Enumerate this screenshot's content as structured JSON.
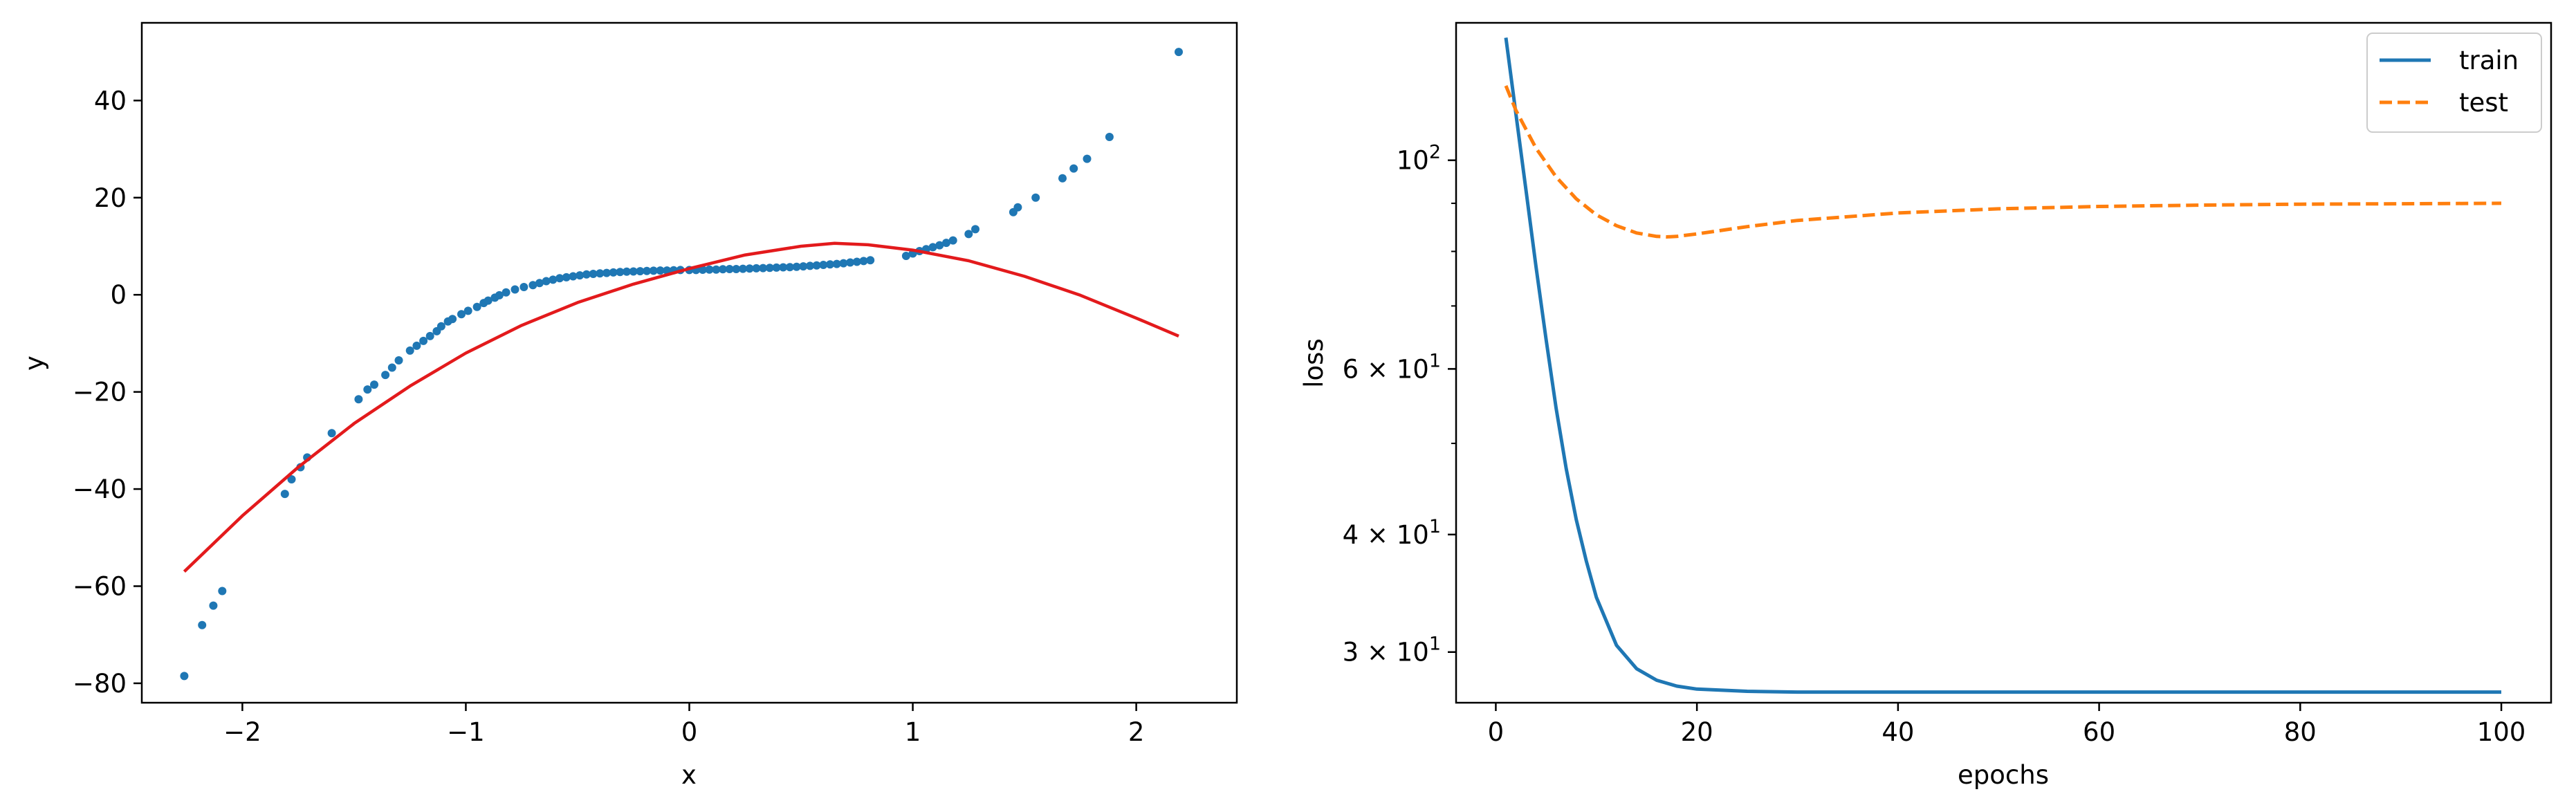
{
  "chart_data": [
    {
      "type": "scatter",
      "title": "",
      "xlabel": "x",
      "ylabel": "y",
      "xlim": [
        -2.45,
        2.45
      ],
      "ylim": [
        -84,
        56
      ],
      "xticks": [
        -2,
        -1,
        0,
        1,
        2
      ],
      "xtick_labels": [
        "−2",
        "−1",
        "0",
        "1",
        "2"
      ],
      "yticks": [
        -80,
        -60,
        -40,
        -20,
        0,
        20,
        40
      ],
      "ytick_labels": [
        "−80",
        "−60",
        "−40",
        "−20",
        "0",
        "20",
        "40"
      ],
      "grid": false,
      "colors": {
        "points": "#1f77b4",
        "fit": "#e31a1c"
      },
      "series": [
        {
          "kind": "points",
          "x": [
            -2.26,
            -2.18,
            -2.13,
            -2.09,
            -1.81,
            -1.78,
            -1.74,
            -1.71,
            -1.6,
            -1.48,
            -1.44,
            -1.41,
            -1.36,
            -1.33,
            -1.3,
            -1.25,
            -1.22,
            -1.19,
            -1.16,
            -1.13,
            -1.11,
            -1.08,
            -1.06,
            -1.02,
            -0.99,
            -0.95,
            -0.92,
            -0.9,
            -0.87,
            -0.85,
            -0.82,
            -0.78,
            -0.74,
            -0.7,
            -0.67,
            -0.64,
            -0.61,
            -0.58,
            -0.55,
            -0.52,
            -0.49,
            -0.46,
            -0.43,
            -0.4,
            -0.37,
            -0.34,
            -0.31,
            -0.28,
            -0.25,
            -0.22,
            -0.19,
            -0.16,
            -0.13,
            -0.1,
            -0.07,
            -0.04,
            0.0,
            0.03,
            0.06,
            0.09,
            0.12,
            0.15,
            0.18,
            0.21,
            0.24,
            0.27,
            0.3,
            0.33,
            0.36,
            0.39,
            0.42,
            0.45,
            0.48,
            0.51,
            0.54,
            0.57,
            0.6,
            0.63,
            0.66,
            0.69,
            0.72,
            0.75,
            0.78,
            0.81,
            0.97,
            1.0,
            1.03,
            1.06,
            1.09,
            1.12,
            1.15,
            1.18,
            1.25,
            1.28,
            1.45,
            1.47,
            1.55,
            1.67,
            1.72,
            1.78,
            1.88,
            2.19
          ],
          "y": [
            -78.5,
            -68,
            -64,
            -61,
            -41,
            -38,
            -35.5,
            -33.5,
            -28.5,
            -21.5,
            -19.5,
            -18.5,
            -16.5,
            -15,
            -13.5,
            -11.5,
            -10.5,
            -9.5,
            -8.5,
            -7.5,
            -6.5,
            -5.5,
            -5,
            -4,
            -3.3,
            -2.5,
            -1.7,
            -1.2,
            -0.6,
            -0.1,
            0.5,
            1.1,
            1.6,
            2.0,
            2.4,
            2.8,
            3.1,
            3.4,
            3.6,
            3.8,
            4.0,
            4.2,
            4.3,
            4.4,
            4.5,
            4.6,
            4.7,
            4.75,
            4.8,
            4.85,
            4.9,
            4.95,
            5.0,
            5.0,
            5.05,
            5.1,
            5.1,
            5.1,
            5.15,
            5.2,
            5.2,
            5.25,
            5.3,
            5.3,
            5.35,
            5.4,
            5.45,
            5.5,
            5.55,
            5.6,
            5.65,
            5.7,
            5.75,
            5.85,
            5.95,
            6.05,
            6.15,
            6.25,
            6.35,
            6.5,
            6.65,
            6.8,
            6.95,
            7.1,
            8.0,
            8.5,
            9.0,
            9.4,
            9.8,
            10.2,
            10.7,
            11.2,
            12.5,
            13.5,
            17,
            18,
            20,
            24,
            26,
            28,
            32.5,
            50
          ]
        },
        {
          "kind": "line",
          "x": [
            -2.26,
            -2.0,
            -1.75,
            -1.5,
            -1.25,
            -1.0,
            -0.75,
            -0.5,
            -0.25,
            0.0,
            0.25,
            0.5,
            0.65,
            0.8,
            1.0,
            1.25,
            1.5,
            1.75,
            2.0,
            2.19
          ],
          "y": [
            -57,
            -45.5,
            -35.5,
            -26.5,
            -18.8,
            -12,
            -6.3,
            -1.6,
            2.2,
            5.4,
            8.2,
            10,
            10.6,
            10.3,
            9.2,
            7,
            3.8,
            -0.1,
            -4.8,
            -8.5
          ]
        }
      ]
    },
    {
      "type": "line",
      "title": "",
      "xlabel": "epochs",
      "ylabel": "loss",
      "yscale": "log",
      "xlim": [
        -3.95,
        104.95
      ],
      "ylim": [
        26.5,
        140
      ],
      "xticks": [
        0,
        20,
        40,
        60,
        80,
        100
      ],
      "xtick_labels": [
        "0",
        "20",
        "40",
        "60",
        "80",
        "100"
      ],
      "yticks_major": [
        30,
        40,
        60,
        100
      ],
      "ytick_labels": [
        {
          "base": "3 × 10",
          "exp": "1"
        },
        {
          "base": "4 × 10",
          "exp": "1"
        },
        {
          "base": "6 × 10",
          "exp": "1"
        },
        {
          "base": "10",
          "exp": "2"
        }
      ],
      "yticks_minor": [
        50,
        70,
        80,
        90
      ],
      "grid": false,
      "legend_position": "top-right",
      "series": [
        {
          "name": "train",
          "color": "#1f77b4",
          "dash": "solid",
          "x": [
            1,
            2,
            3,
            4,
            5,
            6,
            7,
            8,
            9,
            10,
            12,
            14,
            16,
            18,
            20,
            25,
            30,
            40,
            50,
            60,
            70,
            80,
            90,
            100
          ],
          "y": [
            135,
            112,
            93,
            77,
            64.5,
            54.5,
            47,
            41.5,
            37.5,
            34.3,
            30.5,
            28.8,
            28.0,
            27.6,
            27.4,
            27.25,
            27.2,
            27.2,
            27.2,
            27.2,
            27.2,
            27.2,
            27.2,
            27.2
          ]
        },
        {
          "name": "test",
          "color": "#ff7f0e",
          "dash": "dashed",
          "x": [
            1,
            2,
            4,
            6,
            8,
            10,
            12,
            14,
            16,
            17,
            18,
            20,
            25,
            30,
            40,
            50,
            60,
            70,
            80,
            90,
            100
          ],
          "y": [
            120,
            113,
            103,
            96,
            91,
            87.5,
            85.2,
            83.7,
            83,
            82.9,
            83,
            83.5,
            85,
            86.3,
            87.9,
            88.8,
            89.3,
            89.6,
            89.8,
            89.9,
            90
          ]
        }
      ]
    }
  ]
}
